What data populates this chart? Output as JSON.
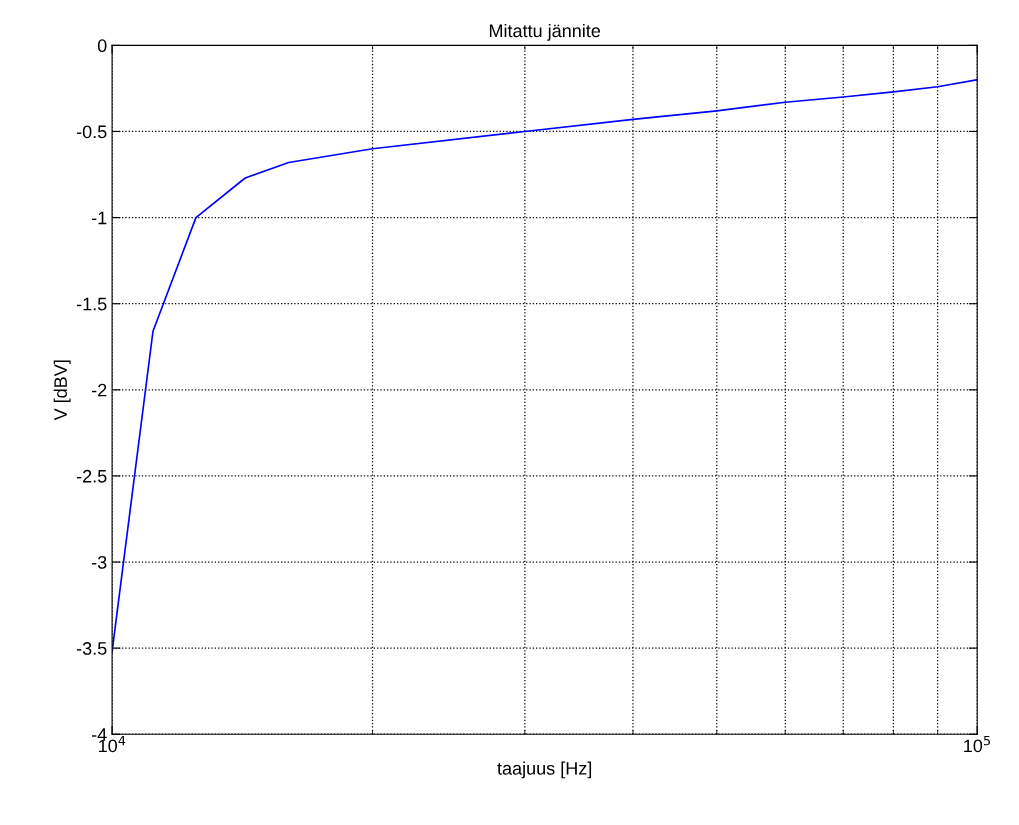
{
  "chart_data": {
    "type": "line",
    "title": "Mitattu jännite",
    "xlabel": "taajuus [Hz]",
    "ylabel": "V [dBV]",
    "log": "x",
    "x": [
      10000,
      11150,
      12500,
      14250,
      16000,
      20000,
      30000,
      40000,
      50000,
      60000,
      70000,
      80000,
      90000,
      100000
    ],
    "series": [
      {
        "color": "#0000ff",
        "values": [
          -3.52,
          -1.66,
          -1.0,
          -0.77,
          -0.68,
          -0.6,
          -0.5,
          -0.43,
          -0.38,
          -0.33,
          -0.3,
          -0.27,
          -0.24,
          -0.2
        ]
      }
    ],
    "xlim": [
      10000,
      100000
    ],
    "xticks": [
      {
        "value": 10000,
        "label": "10$^{4}$"
      },
      {
        "value": 100000,
        "label": "10$^{5}$"
      }
    ],
    "ylim": [
      -4,
      0
    ],
    "yticks": [
      -4,
      -3.5,
      -3,
      -2.5,
      -2,
      -1.5,
      -1,
      -0.5,
      0
    ],
    "grid": true,
    "line_style": "solid"
  }
}
